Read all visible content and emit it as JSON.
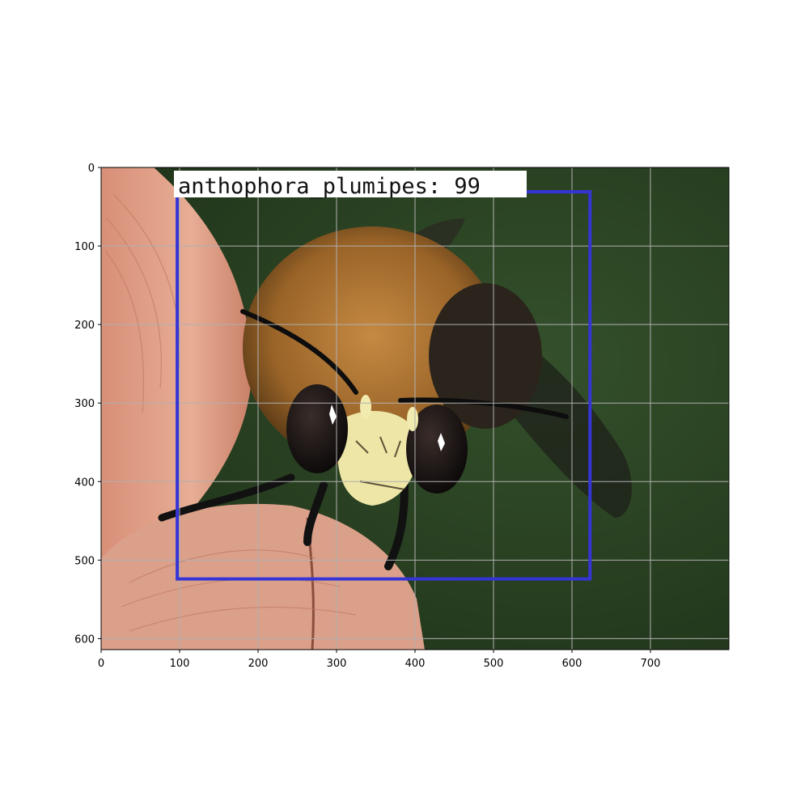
{
  "figure": {
    "x_axis": {
      "range": [
        0,
        800
      ],
      "ticks": [
        0,
        100,
        200,
        300,
        400,
        500,
        600,
        700
      ]
    },
    "y_axis": {
      "range": [
        0,
        614
      ],
      "inverted": true,
      "ticks": [
        0,
        100,
        200,
        300,
        400,
        500,
        600
      ]
    },
    "grid": true,
    "grid_color": "#b0b0b0"
  },
  "photo": {
    "subject": "bee held between fingertips",
    "background_color": "#2c4424",
    "skin_color": "#e0a48c",
    "bee_fur_color": "#a9702f",
    "face_color": "#eee6a6"
  },
  "detection": {
    "label": "anthophora_plumipes: 99",
    "box": {
      "x_min": 97,
      "y_min": 31,
      "x_max": 623,
      "y_max": 524
    },
    "box_color": "#3535d6",
    "label_background": "#ffffff"
  }
}
